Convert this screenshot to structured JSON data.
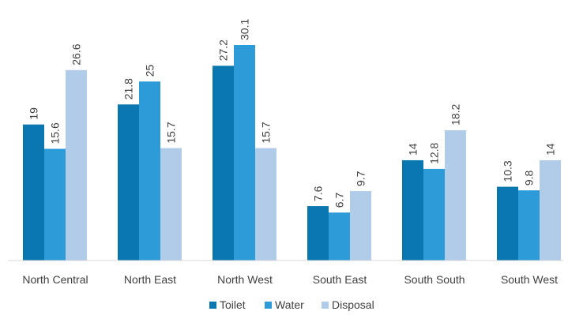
{
  "chart_data": {
    "type": "bar",
    "title": "",
    "xlabel": "",
    "ylabel": "",
    "ylim": [
      0,
      30.1
    ],
    "grid": false,
    "legend_position": "bottom",
    "categories": [
      "North Central",
      "North East",
      "North West",
      "South East",
      "South South",
      "South West"
    ],
    "series": [
      {
        "name": "Toilet",
        "color": "#0a77b0",
        "values": [
          19,
          21.8,
          27.2,
          7.6,
          14,
          10.3
        ]
      },
      {
        "name": "Water",
        "color": "#2d9bd8",
        "values": [
          15.6,
          25,
          30.1,
          6.7,
          12.8,
          9.8
        ]
      },
      {
        "name": "Disposal",
        "color": "#b1cce9",
        "values": [
          26.6,
          15.7,
          15.7,
          9.7,
          18.2,
          14
        ]
      }
    ],
    "data_labels": [
      [
        "19",
        "21.8",
        "27.2",
        "7.6",
        "14",
        "10.3"
      ],
      [
        "15.6",
        "25",
        "30.1",
        "6.7",
        "12.8",
        "9.8"
      ],
      [
        "26.6",
        "15.7",
        "15.7",
        "9.7",
        "18.2",
        "14"
      ]
    ]
  }
}
